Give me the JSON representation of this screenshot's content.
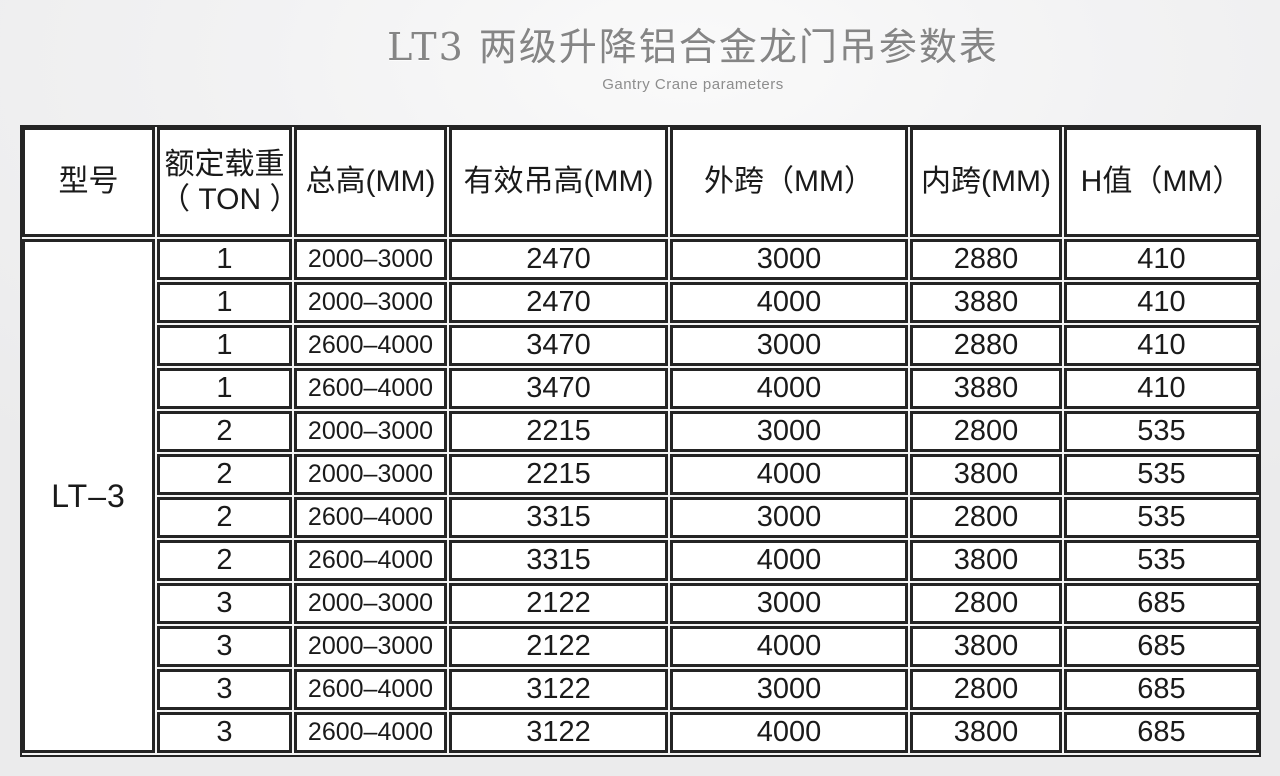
{
  "page": {
    "title": "LT3 两级升降铝合金龙门吊参数表",
    "subtitle": "Gantry Crane parameters"
  },
  "colors": {
    "page_background": "#ececec",
    "table_border": "#242424",
    "cell_background": "#ffffff",
    "table_text": "#1a1a1a",
    "title_text": "#858585"
  },
  "table": {
    "columns": [
      "型号",
      "额定载重\n（ TON ）",
      "总高(MM)",
      "有效吊高(MM)",
      "外跨（MM）",
      "内跨(MM)",
      "H值（MM）"
    ],
    "model": "LT–3",
    "rows": [
      {
        "ton": "1",
        "total_height": "2000–3000",
        "effective_height": "2470",
        "outer_span": "3000",
        "inner_span": "2880",
        "h_value": "410"
      },
      {
        "ton": "1",
        "total_height": "2000–3000",
        "effective_height": "2470",
        "outer_span": "4000",
        "inner_span": "3880",
        "h_value": "410"
      },
      {
        "ton": "1",
        "total_height": "2600–4000",
        "effective_height": "3470",
        "outer_span": "3000",
        "inner_span": "2880",
        "h_value": "410"
      },
      {
        "ton": "1",
        "total_height": "2600–4000",
        "effective_height": "3470",
        "outer_span": "4000",
        "inner_span": "3880",
        "h_value": "410"
      },
      {
        "ton": "2",
        "total_height": "2000–3000",
        "effective_height": "2215",
        "outer_span": "3000",
        "inner_span": "2800",
        "h_value": "535"
      },
      {
        "ton": "2",
        "total_height": "2000–3000",
        "effective_height": "2215",
        "outer_span": "4000",
        "inner_span": "3800",
        "h_value": "535"
      },
      {
        "ton": "2",
        "total_height": "2600–4000",
        "effective_height": "3315",
        "outer_span": "3000",
        "inner_span": "2800",
        "h_value": "535"
      },
      {
        "ton": "2",
        "total_height": "2600–4000",
        "effective_height": "3315",
        "outer_span": "4000",
        "inner_span": "3800",
        "h_value": "535"
      },
      {
        "ton": "3",
        "total_height": "2000–3000",
        "effective_height": "2122",
        "outer_span": "3000",
        "inner_span": "2800",
        "h_value": "685"
      },
      {
        "ton": "3",
        "total_height": "2000–3000",
        "effective_height": "2122",
        "outer_span": "4000",
        "inner_span": "3800",
        "h_value": "685"
      },
      {
        "ton": "3",
        "total_height": "2600–4000",
        "effective_height": "3122",
        "outer_span": "3000",
        "inner_span": "2800",
        "h_value": "685"
      },
      {
        "ton": "3",
        "total_height": "2600–4000",
        "effective_height": "3122",
        "outer_span": "4000",
        "inner_span": "3800",
        "h_value": "685"
      }
    ]
  }
}
